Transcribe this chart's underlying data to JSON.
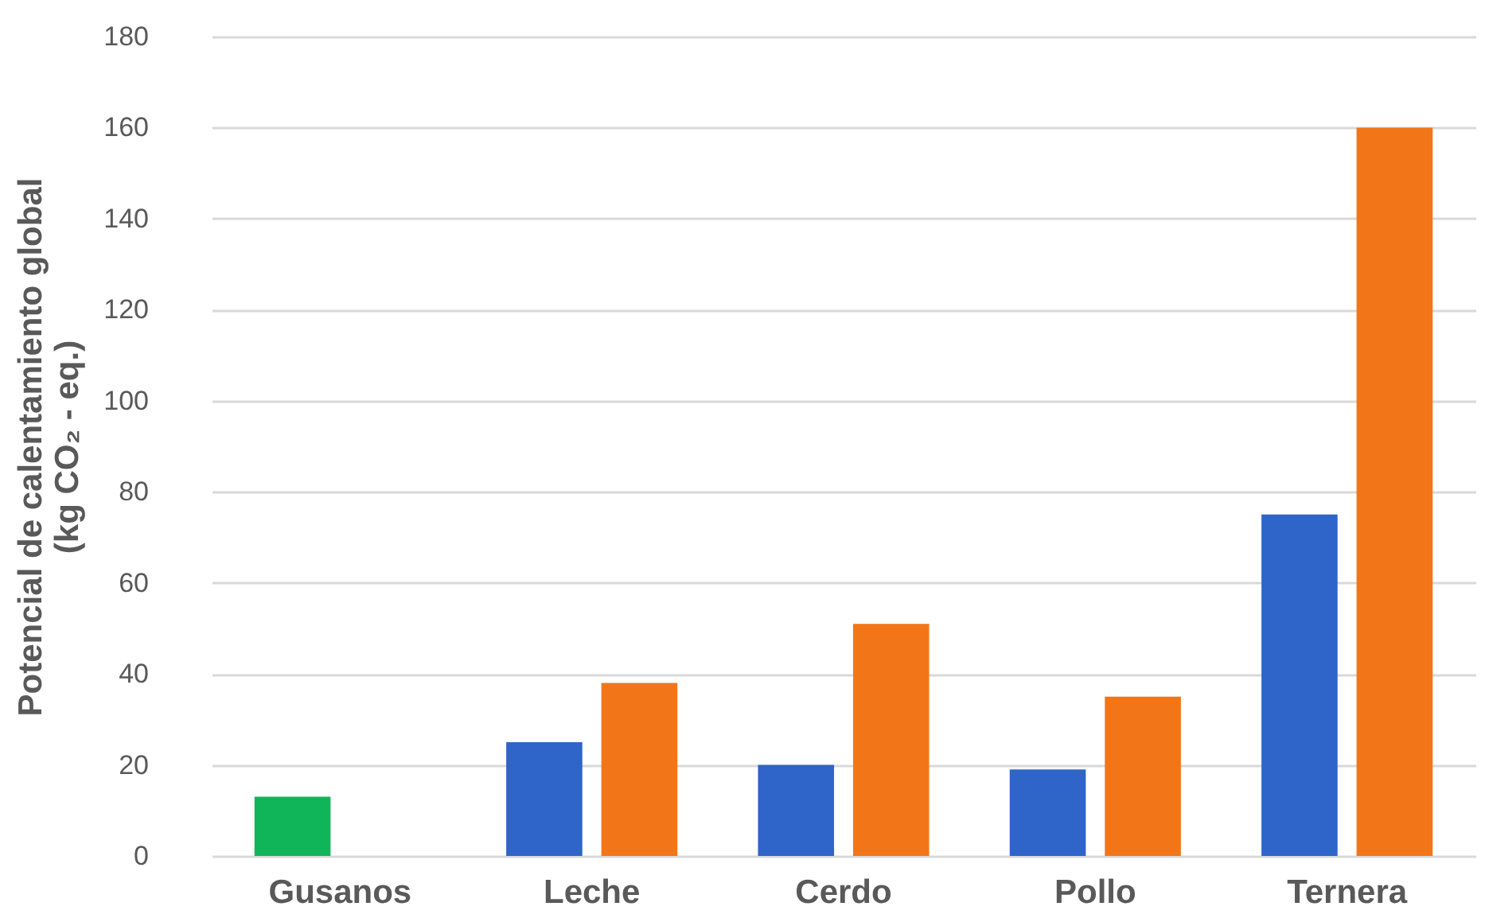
{
  "chart_data": {
    "type": "bar",
    "categories": [
      "Gusanos",
      "Leche",
      "Cerdo",
      "Pollo",
      "Ternera"
    ],
    "series": [
      {
        "color": "#10b55a",
        "values": [
          13,
          null,
          null,
          null,
          null
        ]
      },
      {
        "color": "#2f64c8",
        "values": [
          null,
          25,
          20,
          19,
          75
        ]
      },
      {
        "color": "#f27618",
        "values": [
          null,
          38,
          51,
          35,
          160
        ]
      }
    ],
    "ylabel": "Potencial de calentamiento global\n(kg CO₂ - eq.)",
    "ylim": [
      0,
      180
    ],
    "yticks": [
      0,
      20,
      40,
      60,
      80,
      100,
      120,
      140,
      160,
      180
    ],
    "grid": "y",
    "legend": false
  }
}
